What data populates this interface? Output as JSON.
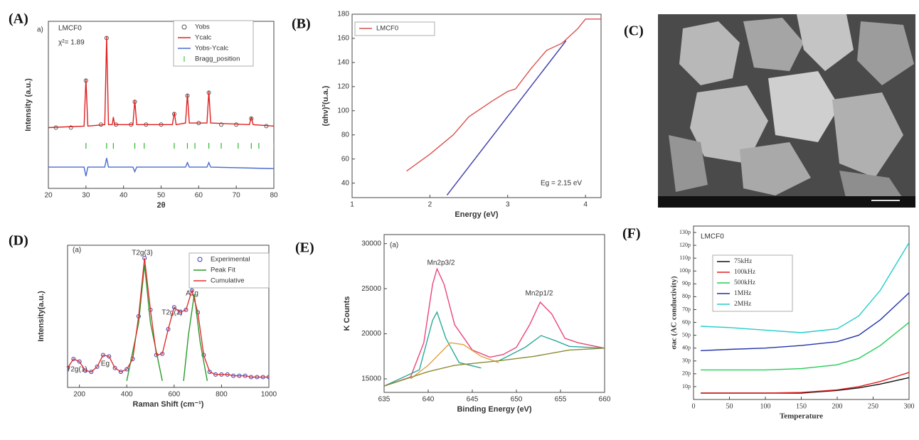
{
  "chart_data": [
    {
      "type": "line",
      "panel_label": "(A)",
      "annotations": [
        "a)",
        "LMCF0",
        "χ²= 1.89"
      ],
      "x_label": "2θ",
      "y_label": "Intensity (a.u.)",
      "xlim": [
        20,
        80
      ],
      "xticks": [
        20,
        30,
        40,
        50,
        60,
        70,
        80
      ],
      "ylim": [
        0,
        110
      ],
      "legend": "upper right",
      "series": [
        {
          "name": "Yobs",
          "color": "#555555",
          "style": "points",
          "x": [
            22,
            26,
            30,
            34,
            35.5,
            38,
            42,
            43,
            46,
            50,
            53.5,
            57,
            60,
            62.7,
            66,
            70,
            74,
            78
          ],
          "values": [
            40,
            40,
            71,
            42,
            99,
            42,
            42,
            57,
            42,
            42,
            49,
            61,
            43,
            63,
            42,
            42,
            46,
            41
          ]
        },
        {
          "name": "Ycalc",
          "color": "#e02020",
          "style": "line",
          "x": [
            20,
            29.5,
            30,
            30.5,
            35,
            35.5,
            36,
            37,
            37.3,
            37.6,
            42.5,
            43,
            43.5,
            53,
            53.5,
            54,
            56.5,
            57,
            57.5,
            62.2,
            62.7,
            63.2,
            73.5,
            74,
            74.5,
            80
          ],
          "values": [
            40,
            41,
            72,
            41,
            42,
            100,
            42,
            42,
            47,
            42,
            42,
            58,
            42,
            42,
            50,
            42,
            43,
            62,
            43,
            43,
            64,
            43,
            42,
            47,
            42,
            41
          ]
        },
        {
          "name": "Yobs-Ycalc",
          "color": "#4a6ad0",
          "style": "line",
          "x": [
            20,
            29.5,
            30,
            30.5,
            35,
            35.5,
            36,
            42.5,
            43,
            43.5,
            56.5,
            57,
            57.5,
            62.2,
            62.7,
            63.2,
            80
          ],
          "values": [
            14,
            14,
            8,
            14,
            14,
            20,
            14,
            14,
            11,
            14,
            14,
            17,
            14,
            14,
            17,
            14,
            13
          ]
        },
        {
          "name": "Bragg_position",
          "color": "#2db52d",
          "style": "ticks",
          "x": [
            30,
            35.5,
            37.3,
            43,
            45.5,
            53.5,
            57,
            59,
            62.7,
            66,
            70.5,
            74,
            76,
            80
          ],
          "values": [
            28,
            28,
            28,
            28,
            28,
            28,
            28,
            28,
            28,
            28,
            28,
            28,
            28,
            28
          ]
        }
      ]
    },
    {
      "type": "line",
      "panel_label": "(B)",
      "annotations": [
        "Eg = 2.15 eV"
      ],
      "x_label": "Energy (eV)",
      "y_label": "(αhν)²(u.a.)",
      "xlim": [
        1,
        4.2
      ],
      "xticks": [
        1,
        2,
        3,
        4
      ],
      "ylim": [
        28,
        180
      ],
      "yticks": [
        40,
        60,
        80,
        100,
        120,
        140,
        160,
        180
      ],
      "legend": "upper left",
      "series": [
        {
          "name": "LMCF0",
          "color": "#d9534f",
          "style": "line",
          "x": [
            1.7,
            2,
            2.3,
            2.5,
            2.8,
            3,
            3.1,
            3.3,
            3.5,
            3.7,
            3.9,
            4,
            4.2
          ],
          "values": [
            50,
            64,
            80,
            95,
            108,
            116,
            118,
            135,
            150,
            156,
            168,
            176,
            176
          ]
        },
        {
          "color": "#3a3aa8",
          "style": "line",
          "x": [
            2.22,
            3.75
          ],
          "values": [
            30,
            158
          ]
        }
      ]
    },
    {
      "type": "line",
      "panel_label": "(D)",
      "annotations": [
        "(a)",
        "T2g(1)",
        "Eg",
        "T2g(3)",
        "T2g(2)",
        "A1g"
      ],
      "x_label": "Raman Shift (cm⁻¹)",
      "y_label": "Intensity(a.u.)",
      "xlim": [
        150,
        1000
      ],
      "xticks": [
        200,
        400,
        600,
        800,
        1000
      ],
      "ylim": [
        0,
        110
      ],
      "legend": "upper right",
      "series": [
        {
          "name": "Experimental",
          "color": "#3a3ab5",
          "style": "points",
          "x": [
            150,
            175,
            200,
            225,
            250,
            275,
            300,
            325,
            350,
            375,
            400,
            425,
            450,
            475,
            500,
            525,
            550,
            575,
            600,
            625,
            650,
            675,
            700,
            725,
            750,
            775,
            800,
            825,
            850,
            875,
            900,
            925,
            950,
            975,
            1000
          ],
          "values": [
            15,
            22,
            20,
            13,
            12,
            16,
            25,
            24,
            15,
            12,
            14,
            22,
            55,
            100,
            60,
            25,
            26,
            45,
            62,
            58,
            60,
            75,
            58,
            25,
            12,
            10,
            10,
            10,
            9,
            9,
            9,
            8,
            8,
            8,
            8
          ]
        },
        {
          "name": "Peak Fit",
          "color": "#2a9a2a",
          "style": "line",
          "x": [
            400,
            450,
            475,
            500,
            550,
            600,
            640,
            660,
            685,
            710,
            740
          ],
          "values": [
            5,
            50,
            95,
            50,
            5,
            null,
            5,
            40,
            72,
            35,
            5
          ]
        },
        {
          "name": "Cumulative",
          "color": "#e03030",
          "style": "line",
          "x": [
            150,
            175,
            200,
            225,
            250,
            275,
            300,
            325,
            350,
            375,
            400,
            425,
            450,
            475,
            500,
            525,
            550,
            575,
            600,
            625,
            650,
            675,
            700,
            725,
            750,
            775,
            800,
            825,
            850,
            875,
            900,
            925,
            950,
            975,
            1000
          ],
          "values": [
            15,
            22,
            20,
            13,
            12,
            16,
            25,
            24,
            15,
            12,
            14,
            22,
            55,
            100,
            60,
            25,
            26,
            45,
            62,
            58,
            60,
            75,
            58,
            25,
            12,
            10,
            10,
            10,
            9,
            9,
            9,
            8,
            8,
            8,
            8
          ]
        }
      ]
    },
    {
      "type": "line",
      "panel_label": "(E)",
      "annotations": [
        "(a)",
        "Mn2p3/2",
        "Mn2p1/2"
      ],
      "x_label": "Binding Energy (eV)",
      "y_label": "K Counts",
      "xlim": [
        635,
        660
      ],
      "xticks": [
        635,
        640,
        645,
        650,
        655,
        660
      ],
      "ylim": [
        13500,
        31000
      ],
      "yticks": [
        15000,
        20000,
        25000,
        30000
      ],
      "series": [
        {
          "color": "#e8457a",
          "style": "line",
          "x": [
            635,
            638,
            639.5,
            640.5,
            641,
            641.8,
            643,
            645,
            647,
            648.5,
            650,
            651.5,
            652.7,
            654,
            655.5,
            657,
            660
          ],
          "values": [
            14200,
            15200,
            19000,
            25500,
            27200,
            25500,
            21000,
            18200,
            17400,
            17700,
            18500,
            21000,
            23500,
            22200,
            19500,
            19000,
            18400
          ]
        },
        {
          "color": "#2aa89a",
          "style": "line",
          "x": [
            635,
            639,
            640.5,
            641,
            642,
            643.5,
            646
          ],
          "values": [
            14200,
            16000,
            21500,
            22400,
            19500,
            16800,
            16200
          ]
        },
        {
          "color": "#e0a040",
          "style": "line",
          "x": [
            638,
            640,
            642.5,
            644,
            646,
            648
          ],
          "values": [
            15000,
            16500,
            19000,
            18800,
            17500,
            16800
          ]
        },
        {
          "color": "#2aa89a",
          "style": "line",
          "x": [
            648,
            651,
            652.8,
            654.5,
            656,
            660
          ],
          "values": [
            17000,
            18500,
            19800,
            19200,
            18600,
            18400
          ]
        },
        {
          "color": "#8a8a30",
          "style": "line",
          "x": [
            635,
            640,
            643,
            648,
            652,
            656,
            660
          ],
          "values": [
            14200,
            15800,
            16500,
            17000,
            17500,
            18200,
            18400
          ]
        }
      ]
    },
    {
      "type": "line",
      "panel_label": "(F)",
      "annotations": [
        "LMCF0"
      ],
      "x_label": "Temperature",
      "y_label": "σac (AC conductivity)",
      "xlim": [
        0,
        300
      ],
      "xticks": [
        0,
        50,
        100,
        150,
        200,
        250,
        300
      ],
      "ylim": [
        0,
        135
      ],
      "yticks": [
        {
          "value": 10,
          "label": "10p"
        },
        {
          "value": 20,
          "label": "20p"
        },
        {
          "value": 30,
          "label": "30p"
        },
        {
          "value": 40,
          "label": "40p"
        },
        {
          "value": 50,
          "label": "50p"
        },
        {
          "value": 60,
          "label": "60p"
        },
        {
          "value": 70,
          "label": "70p"
        },
        {
          "value": 80,
          "label": "80p"
        },
        {
          "value": 90,
          "label": "90p"
        },
        {
          "value": 100,
          "label": "100p"
        },
        {
          "value": 110,
          "label": "110p"
        },
        {
          "value": 120,
          "label": "120p"
        },
        {
          "value": 130,
          "label": "130p"
        }
      ],
      "legend": "upper left",
      "series": [
        {
          "name": "75kHz",
          "color": "#111111",
          "style": "line",
          "x": [
            10,
            50,
            100,
            150,
            200,
            230,
            260,
            300
          ],
          "values": [
            5,
            5,
            5,
            5,
            7,
            9,
            12,
            17
          ]
        },
        {
          "name": "100kHz",
          "color": "#e02020",
          "style": "line",
          "x": [
            10,
            50,
            100,
            150,
            200,
            230,
            260,
            300
          ],
          "values": [
            5,
            5,
            5,
            5.5,
            7.5,
            10,
            14,
            21
          ]
        },
        {
          "name": "500kHz",
          "color": "#22cc55",
          "style": "line",
          "x": [
            10,
            50,
            100,
            150,
            200,
            230,
            260,
            300
          ],
          "values": [
            23,
            23,
            23,
            24,
            27,
            32,
            42,
            60
          ]
        },
        {
          "name": "1MHz",
          "color": "#2233aa",
          "style": "line",
          "x": [
            10,
            50,
            100,
            150,
            200,
            230,
            260,
            300
          ],
          "values": [
            38,
            39,
            40,
            42,
            45,
            50,
            62,
            83
          ]
        },
        {
          "name": "2MHz",
          "color": "#22cccc",
          "style": "line",
          "x": [
            10,
            50,
            100,
            150,
            200,
            230,
            260,
            300
          ],
          "values": [
            57,
            56,
            54,
            52,
            55,
            65,
            85,
            122
          ]
        }
      ]
    }
  ],
  "image_panel": {
    "panel_label": "(C)"
  }
}
